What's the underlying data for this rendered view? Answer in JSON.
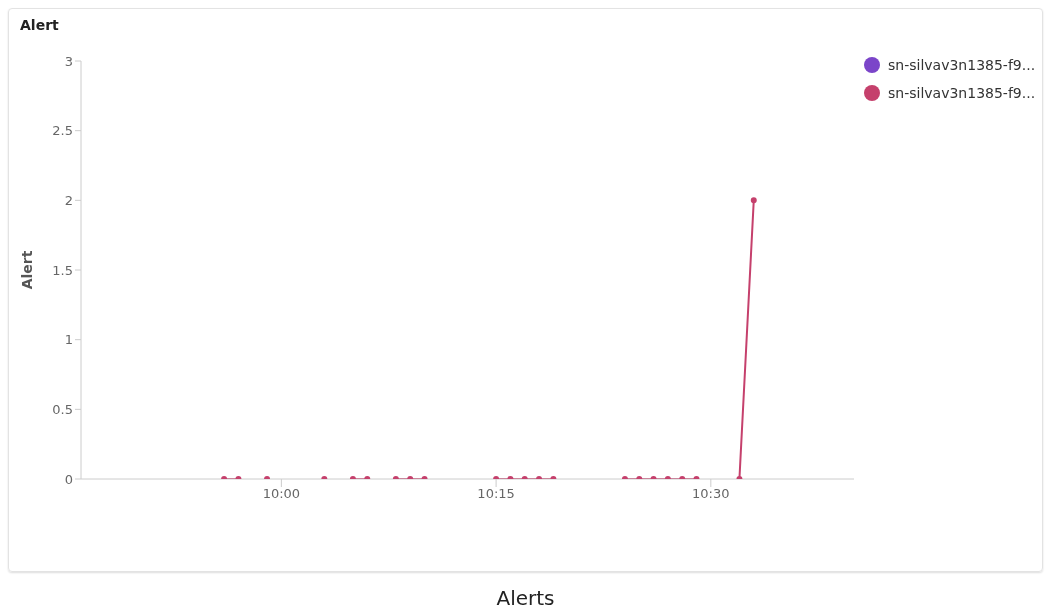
{
  "chart_data": {
    "type": "line",
    "title": "Alert",
    "ylabel": "Alert",
    "annotations": [
      "Alerts"
    ],
    "x": [
      9.9333,
      9.95,
      9.9667,
      9.9833,
      10,
      10.0167,
      10.0333,
      10.05,
      10.0667,
      10.0833,
      10.1,
      10.1167,
      10.1333,
      10.15,
      10.1667,
      10.1833,
      10.2,
      10.2167,
      10.2333,
      10.25,
      10.2667,
      10.2833,
      10.3,
      10.3167,
      10.3333,
      10.35,
      10.3667,
      10.3833,
      10.4,
      10.4167,
      10.4333,
      10.45,
      10.4667,
      10.4833,
      10.5,
      10.5167,
      10.5333,
      10.55
    ],
    "series": [
      {
        "name": "sn-silvav3n1385-f9...",
        "color": "#7b45c9",
        "values": [
          null,
          null,
          null,
          null,
          null,
          null,
          null,
          null,
          null,
          null,
          null,
          null,
          null,
          null,
          null,
          null,
          null,
          null,
          null,
          null,
          null,
          null,
          null,
          null,
          null,
          null,
          null,
          null,
          null,
          null,
          null,
          null,
          null,
          null,
          null,
          null,
          null,
          null
        ]
      },
      {
        "name": "sn-silvav3n1385-f9...",
        "color": "#c5406c",
        "values": [
          0,
          0,
          null,
          0,
          null,
          null,
          null,
          0,
          null,
          0,
          0,
          null,
          0,
          0,
          0,
          null,
          null,
          null,
          null,
          0,
          0,
          0,
          0,
          0,
          null,
          null,
          null,
          null,
          0,
          0,
          0,
          0,
          0,
          0,
          null,
          null,
          0,
          2
        ]
      }
    ],
    "xlim": [
      9.7667,
      10.6667
    ],
    "xticks": [
      {
        "value": 10,
        "label": "10:00"
      },
      {
        "value": 10.25,
        "label": "10:15"
      },
      {
        "value": 10.5,
        "label": "10:30"
      }
    ],
    "ylim": [
      0,
      3
    ],
    "yticks": [
      0,
      0.5,
      1,
      1.5,
      2,
      2.5,
      3
    ],
    "legend": "top right",
    "marker": "circle",
    "line_style": "solid"
  }
}
